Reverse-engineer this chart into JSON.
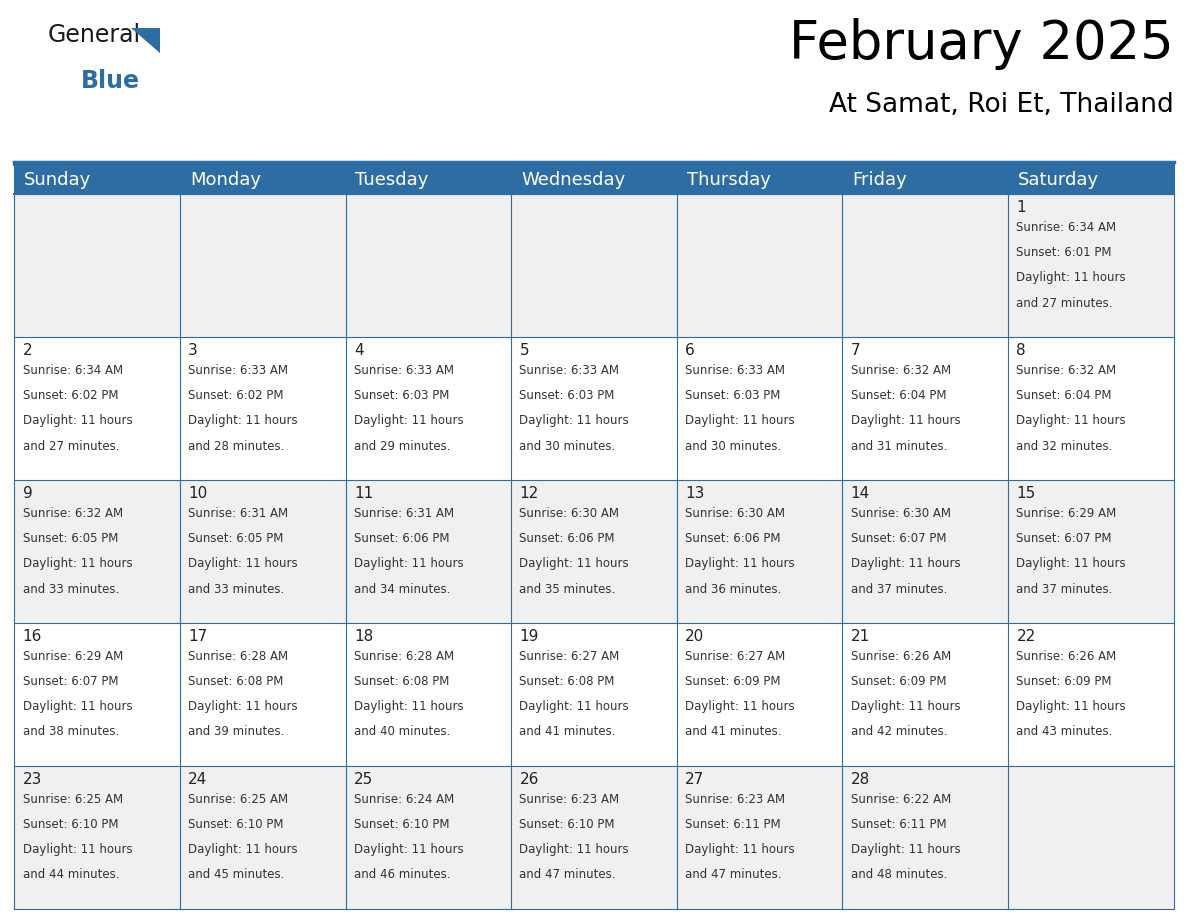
{
  "title": "February 2025",
  "subtitle": "At Samat, Roi Et, Thailand",
  "header_color": "#2E6DA4",
  "header_text_color": "#FFFFFF",
  "cell_bg_even": "#F0F0F0",
  "cell_bg_odd": "#FFFFFF",
  "border_color": "#2E6DA4",
  "days_of_week": [
    "Sunday",
    "Monday",
    "Tuesday",
    "Wednesday",
    "Thursday",
    "Friday",
    "Saturday"
  ],
  "title_fontsize": 38,
  "subtitle_fontsize": 19,
  "day_header_fontsize": 13,
  "day_num_fontsize": 11,
  "cell_text_fontsize": 8.5,
  "logo_general_fontsize": 17,
  "logo_blue_fontsize": 17,
  "calendar": [
    [
      {
        "day": null,
        "sunrise": null,
        "sunset": null,
        "daylight": null
      },
      {
        "day": null,
        "sunrise": null,
        "sunset": null,
        "daylight": null
      },
      {
        "day": null,
        "sunrise": null,
        "sunset": null,
        "daylight": null
      },
      {
        "day": null,
        "sunrise": null,
        "sunset": null,
        "daylight": null
      },
      {
        "day": null,
        "sunrise": null,
        "sunset": null,
        "daylight": null
      },
      {
        "day": null,
        "sunrise": null,
        "sunset": null,
        "daylight": null
      },
      {
        "day": 1,
        "sunrise": "6:34 AM",
        "sunset": "6:01 PM",
        "daylight": "11 hours and 27 minutes."
      }
    ],
    [
      {
        "day": 2,
        "sunrise": "6:34 AM",
        "sunset": "6:02 PM",
        "daylight": "11 hours and 27 minutes."
      },
      {
        "day": 3,
        "sunrise": "6:33 AM",
        "sunset": "6:02 PM",
        "daylight": "11 hours and 28 minutes."
      },
      {
        "day": 4,
        "sunrise": "6:33 AM",
        "sunset": "6:03 PM",
        "daylight": "11 hours and 29 minutes."
      },
      {
        "day": 5,
        "sunrise": "6:33 AM",
        "sunset": "6:03 PM",
        "daylight": "11 hours and 30 minutes."
      },
      {
        "day": 6,
        "sunrise": "6:33 AM",
        "sunset": "6:03 PM",
        "daylight": "11 hours and 30 minutes."
      },
      {
        "day": 7,
        "sunrise": "6:32 AM",
        "sunset": "6:04 PM",
        "daylight": "11 hours and 31 minutes."
      },
      {
        "day": 8,
        "sunrise": "6:32 AM",
        "sunset": "6:04 PM",
        "daylight": "11 hours and 32 minutes."
      }
    ],
    [
      {
        "day": 9,
        "sunrise": "6:32 AM",
        "sunset": "6:05 PM",
        "daylight": "11 hours and 33 minutes."
      },
      {
        "day": 10,
        "sunrise": "6:31 AM",
        "sunset": "6:05 PM",
        "daylight": "11 hours and 33 minutes."
      },
      {
        "day": 11,
        "sunrise": "6:31 AM",
        "sunset": "6:06 PM",
        "daylight": "11 hours and 34 minutes."
      },
      {
        "day": 12,
        "sunrise": "6:30 AM",
        "sunset": "6:06 PM",
        "daylight": "11 hours and 35 minutes."
      },
      {
        "day": 13,
        "sunrise": "6:30 AM",
        "sunset": "6:06 PM",
        "daylight": "11 hours and 36 minutes."
      },
      {
        "day": 14,
        "sunrise": "6:30 AM",
        "sunset": "6:07 PM",
        "daylight": "11 hours and 37 minutes."
      },
      {
        "day": 15,
        "sunrise": "6:29 AM",
        "sunset": "6:07 PM",
        "daylight": "11 hours and 37 minutes."
      }
    ],
    [
      {
        "day": 16,
        "sunrise": "6:29 AM",
        "sunset": "6:07 PM",
        "daylight": "11 hours and 38 minutes."
      },
      {
        "day": 17,
        "sunrise": "6:28 AM",
        "sunset": "6:08 PM",
        "daylight": "11 hours and 39 minutes."
      },
      {
        "day": 18,
        "sunrise": "6:28 AM",
        "sunset": "6:08 PM",
        "daylight": "11 hours and 40 minutes."
      },
      {
        "day": 19,
        "sunrise": "6:27 AM",
        "sunset": "6:08 PM",
        "daylight": "11 hours and 41 minutes."
      },
      {
        "day": 20,
        "sunrise": "6:27 AM",
        "sunset": "6:09 PM",
        "daylight": "11 hours and 41 minutes."
      },
      {
        "day": 21,
        "sunrise": "6:26 AM",
        "sunset": "6:09 PM",
        "daylight": "11 hours and 42 minutes."
      },
      {
        "day": 22,
        "sunrise": "6:26 AM",
        "sunset": "6:09 PM",
        "daylight": "11 hours and 43 minutes."
      }
    ],
    [
      {
        "day": 23,
        "sunrise": "6:25 AM",
        "sunset": "6:10 PM",
        "daylight": "11 hours and 44 minutes."
      },
      {
        "day": 24,
        "sunrise": "6:25 AM",
        "sunset": "6:10 PM",
        "daylight": "11 hours and 45 minutes."
      },
      {
        "day": 25,
        "sunrise": "6:24 AM",
        "sunset": "6:10 PM",
        "daylight": "11 hours and 46 minutes."
      },
      {
        "day": 26,
        "sunrise": "6:23 AM",
        "sunset": "6:10 PM",
        "daylight": "11 hours and 47 minutes."
      },
      {
        "day": 27,
        "sunrise": "6:23 AM",
        "sunset": "6:11 PM",
        "daylight": "11 hours and 47 minutes."
      },
      {
        "day": 28,
        "sunrise": "6:22 AM",
        "sunset": "6:11 PM",
        "daylight": "11 hours and 48 minutes."
      },
      {
        "day": null,
        "sunrise": null,
        "sunset": null,
        "daylight": null
      }
    ]
  ]
}
